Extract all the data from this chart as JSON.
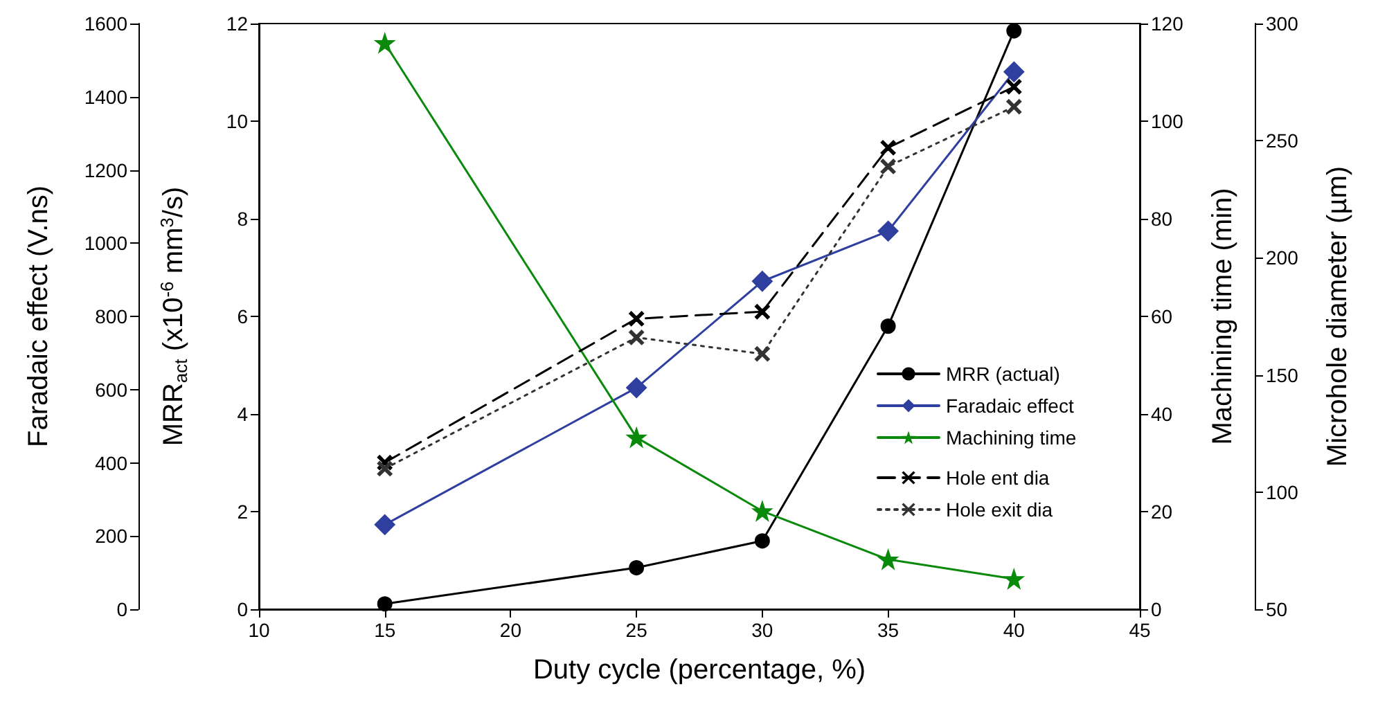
{
  "chart_data": [
    {
      "type": "line",
      "xlabel": "Duty cycle (percentage, %)",
      "x": [
        15,
        25,
        30,
        35,
        40
      ],
      "xlim": [
        10,
        45
      ],
      "xticks": [
        10,
        15,
        20,
        25,
        30,
        35,
        40,
        45
      ],
      "ylabel": "MRR$_{act}$ (x10$^{-6}$ mm$^{3}$/s)",
      "ylim": [
        0,
        12
      ],
      "yticks": [
        0,
        2,
        4,
        6,
        8,
        10,
        12
      ],
      "y2label": "Faradaic effect (V.ns)",
      "y2lim": [
        0,
        1600
      ],
      "y2ticks": [
        0,
        200,
        400,
        600,
        800,
        1000,
        1200,
        1400,
        1600
      ],
      "y3label": "Machining time (min)",
      "y3lim": [
        0,
        120
      ],
      "y3ticks": [
        0,
        20,
        40,
        60,
        80,
        100,
        120
      ],
      "grid": false,
      "legend": "bottom right",
      "series": [
        {
          "name": "MRR (actual)",
          "color": "#000000",
          "values": [
            0.11,
            0.85,
            1.4,
            5.8,
            11.85
          ],
          "marker": "circle",
          "line_style": "solid"
        },
        {
          "name": "Faradaic effect",
          "color": "#2e3fa0",
          "values": [
            231,
            605,
            896,
            1033,
            1468
          ],
          "axis": "y2",
          "marker": "diamond",
          "line_style": "solid"
        },
        {
          "name": "Machining time",
          "color": "#0a8a0a",
          "values": [
            116,
            35.2,
            20.1,
            10.2,
            6.2
          ],
          "axis": "y3",
          "marker": "star",
          "line_style": "solid"
        }
      ]
    },
    {
      "type": "line",
      "x": [
        15,
        25,
        30,
        35,
        40
      ],
      "xlim": [
        10,
        45
      ],
      "ylabel": "Microhole diameter (µm)",
      "ylim": [
        50,
        300
      ],
      "yticks": [
        50,
        100,
        150,
        200,
        250,
        300
      ],
      "grid": false,
      "legend": "bottom right",
      "tick_labels": "y",
      "series": [
        {
          "name": "Hole ent dia",
          "color": "#000000",
          "values": [
            112.6,
            174,
            177,
            247,
            273
          ],
          "marker": "cross",
          "line_style": "dashed"
        },
        {
          "name": "Hole exit dia",
          "color": "#333333",
          "values": [
            110,
            166,
            159,
            239,
            264.5
          ],
          "marker": "cross",
          "line_style": "dotted"
        }
      ]
    }
  ]
}
